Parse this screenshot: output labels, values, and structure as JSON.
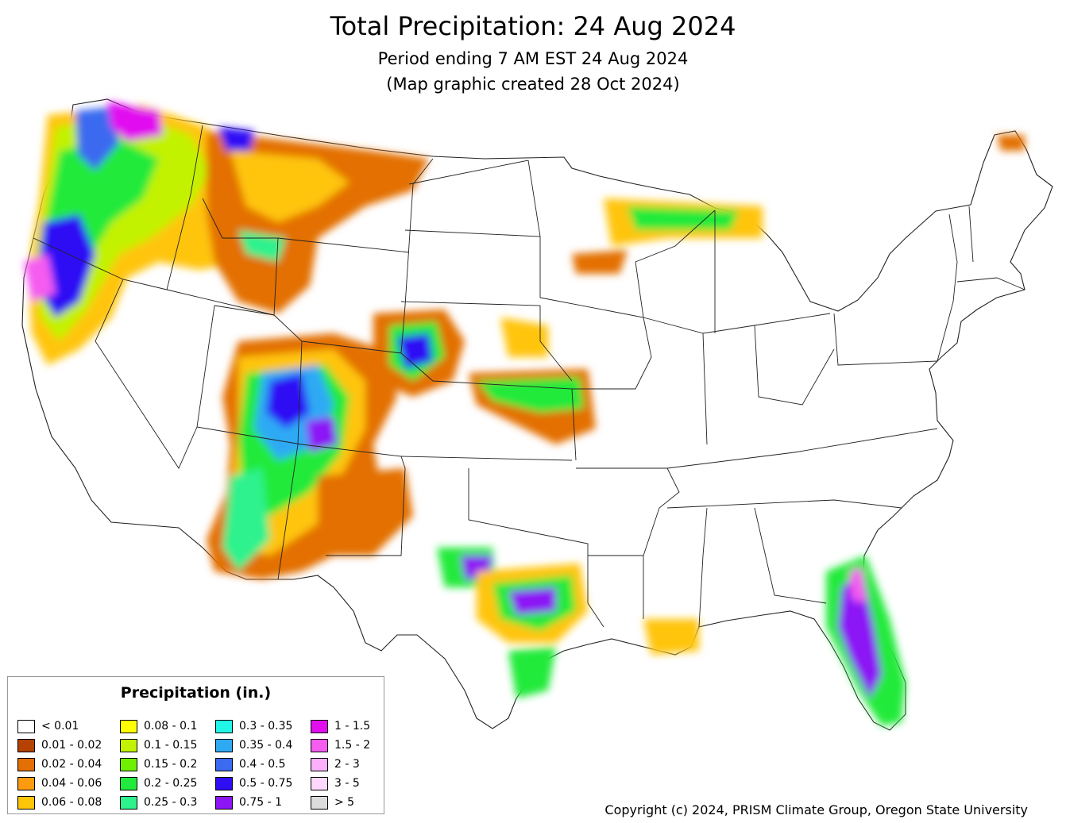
{
  "map": {
    "title": "Total Precipitation: 24 Aug 2024",
    "subtitle_1": "Period ending 7 AM EST 24 Aug 2024",
    "subtitle_2": "(Map graphic created 28 Oct 2024)",
    "copyright": "Copyright (c) 2024, PRISM Climate Group, Oregon State University",
    "region": "Contiguous United States",
    "boundary_color": "#000000"
  },
  "legend": {
    "title": "Precipitation (in.)",
    "columns": [
      [
        {
          "label": "< 0.01",
          "color": "#ffffff"
        },
        {
          "label": "0.01 - 0.02",
          "color": "#b54200"
        },
        {
          "label": "0.02 - 0.04",
          "color": "#e36f05"
        },
        {
          "label": "0.04 - 0.06",
          "color": "#ff9b10"
        },
        {
          "label": "0.06 - 0.08",
          "color": "#ffc507"
        }
      ],
      [
        {
          "label": "0.08 - 0.1",
          "color": "#ffff00"
        },
        {
          "label": "0.1 - 0.15",
          "color": "#c2f200"
        },
        {
          "label": "0.15 - 0.2",
          "color": "#6ef000"
        },
        {
          "label": "0.2 - 0.25",
          "color": "#20ea3b"
        },
        {
          "label": "0.25 - 0.3",
          "color": "#2ef28d"
        }
      ],
      [
        {
          "label": "0.3 - 0.35",
          "color": "#20f7e8"
        },
        {
          "label": "0.35 - 0.4",
          "color": "#2eaaf5"
        },
        {
          "label": "0.4 - 0.5",
          "color": "#3a6bf0"
        },
        {
          "label": "0.5 - 0.75",
          "color": "#2d0ef5"
        },
        {
          "label": "0.75 - 1",
          "color": "#8c14f5"
        }
      ],
      [
        {
          "label": "1 - 1.5",
          "color": "#e10ef0"
        },
        {
          "label": "1.5 - 2",
          "color": "#f55cf0"
        },
        {
          "label": "2 - 3",
          "color": "#fab0fa"
        },
        {
          "label": "3 - 5",
          "color": "#fcd8fc"
        },
        {
          "label": "> 5",
          "color": "#dcdcdc"
        }
      ]
    ]
  }
}
